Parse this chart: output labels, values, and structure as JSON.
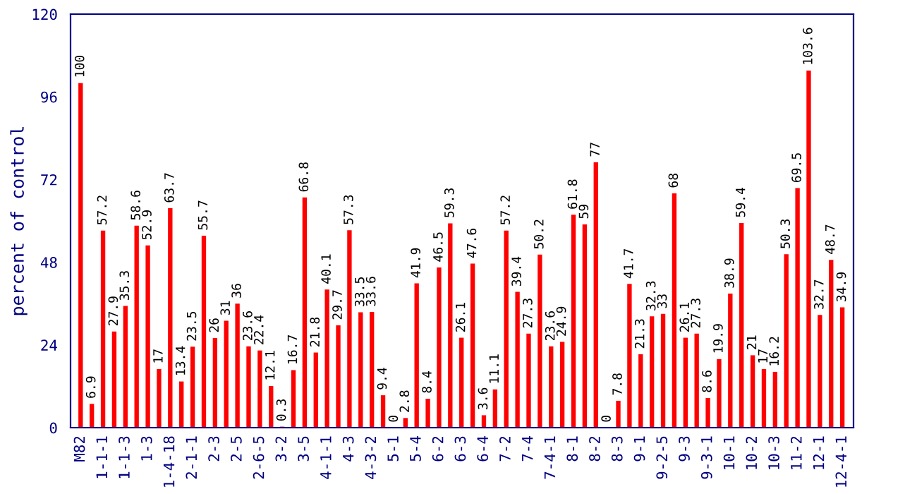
{
  "chart_data": {
    "type": "bar",
    "ylabel": "percent of control",
    "categories": [
      "M82",
      null,
      "1-1-1",
      null,
      "1-1-3",
      null,
      "1-3",
      null,
      "1-4-18",
      null,
      "2-1-1",
      null,
      "2-3",
      null,
      "2-5",
      null,
      "2-6-5",
      null,
      "3-2",
      null,
      "3-5",
      null,
      "4-1-1",
      null,
      "4-3",
      null,
      "4-3-2",
      null,
      "5-1",
      null,
      "5-4",
      null,
      "6-2",
      null,
      "6-3",
      null,
      "6-4",
      null,
      "7-2",
      null,
      "7-4",
      null,
      "7-4-1",
      null,
      "8-1",
      null,
      "8-2",
      null,
      "8-3",
      null,
      "9-1",
      null,
      "9-2-5",
      null,
      "9-3",
      null,
      "9-3-1",
      null,
      "10-1",
      null,
      "10-2",
      null,
      "10-3",
      null,
      "11-2",
      null,
      "12-1",
      null,
      "12-4-1"
    ],
    "values": [
      100,
      6.9,
      57.2,
      27.9,
      35.3,
      58.6,
      52.9,
      17,
      63.7,
      13.4,
      23.5,
      55.7,
      26,
      31,
      36,
      23.6,
      22.4,
      12.1,
      0.3,
      16.7,
      66.8,
      21.8,
      40.1,
      29.7,
      57.3,
      33.5,
      33.6,
      9.4,
      0,
      2.8,
      41.9,
      8.4,
      46.5,
      59.3,
      26.1,
      47.6,
      3.6,
      11.1,
      57.2,
      39.4,
      27.3,
      50.2,
      23.6,
      24.9,
      61.8,
      59,
      77,
      0,
      7.8,
      41.7,
      21.3,
      32.3,
      33,
      68,
      26.1,
      27.3,
      8.6,
      19.9,
      38.9,
      59.4,
      21,
      17,
      16.2,
      50.3,
      69.5,
      103.6,
      32.7,
      48.7,
      34.9
    ],
    "color": "#ff0000",
    "data_labels": true,
    "grid": false,
    "legend": false,
    "ylim": [
      0,
      120
    ],
    "yticks": [
      0,
      24,
      48,
      72,
      96,
      120
    ]
  }
}
